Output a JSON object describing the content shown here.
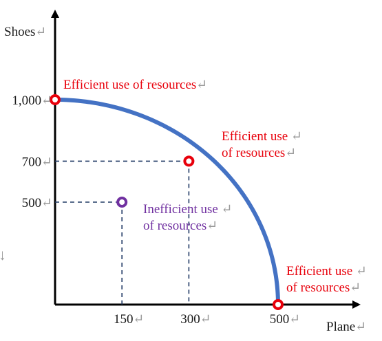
{
  "chart_data": {
    "type": "line",
    "title": "",
    "xlabel": "Plane",
    "ylabel": "Shoes",
    "xlim": [
      0,
      500
    ],
    "ylim": [
      0,
      1000
    ],
    "x_ticks": [
      "150",
      "300",
      "500"
    ],
    "y_ticks": [
      "1,000",
      "700",
      "500"
    ],
    "grid": false,
    "curve": {
      "x": [
        0,
        300,
        500
      ],
      "y": [
        1000,
        700,
        0
      ],
      "color": "#4472C4"
    },
    "points": [
      {
        "x": 0,
        "y": 1000,
        "efficient": true,
        "label": [
          "Efficient use of resources"
        ],
        "color": "#E8000B"
      },
      {
        "x": 300,
        "y": 700,
        "efficient": true,
        "label": [
          "Efficient use",
          "of resources"
        ],
        "color": "#E8000B"
      },
      {
        "x": 500,
        "y": 0,
        "efficient": true,
        "label": [
          "Efficient use",
          "of resources"
        ],
        "color": "#E8000B"
      },
      {
        "x": 150,
        "y": 500,
        "efficient": false,
        "label": [
          "Inefficient use",
          "of resources"
        ],
        "color": "#7030A0"
      }
    ]
  },
  "artifacts": {
    "return_mark": "↵",
    "down_mark": "↓"
  }
}
